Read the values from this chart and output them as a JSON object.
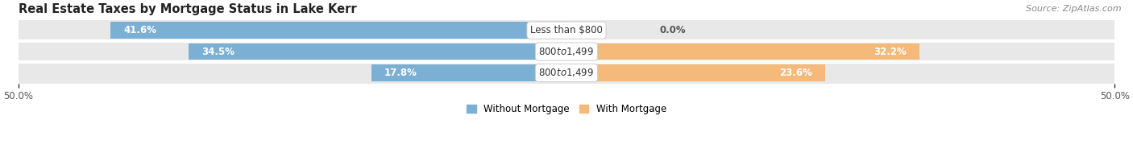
{
  "title": "Real Estate Taxes by Mortgage Status in Lake Kerr",
  "source": "Source: ZipAtlas.com",
  "rows": [
    {
      "label": "Less than $800",
      "without_mortgage": 41.6,
      "with_mortgage": 0.0
    },
    {
      "label": "$800 to $1,499",
      "without_mortgage": 34.5,
      "with_mortgage": 32.2
    },
    {
      "label": "$800 to $1,499",
      "without_mortgage": 17.8,
      "with_mortgage": 23.6
    }
  ],
  "xlim": [
    -50,
    50
  ],
  "xticks": [
    -50,
    50
  ],
  "xticklabels": [
    "50.0%",
    "50.0%"
  ],
  "color_without": "#7bafd4",
  "color_with": "#f5b97a",
  "legend_without": "Without Mortgage",
  "legend_with": "With Mortgage",
  "bar_height": 0.78,
  "row_bg_color": "#e8e8e8",
  "row_sep_color": "#ffffff",
  "title_fontsize": 10.5,
  "label_fontsize": 8.5,
  "value_fontsize": 8.5,
  "background_color": "#ffffff",
  "source_fontsize": 8
}
